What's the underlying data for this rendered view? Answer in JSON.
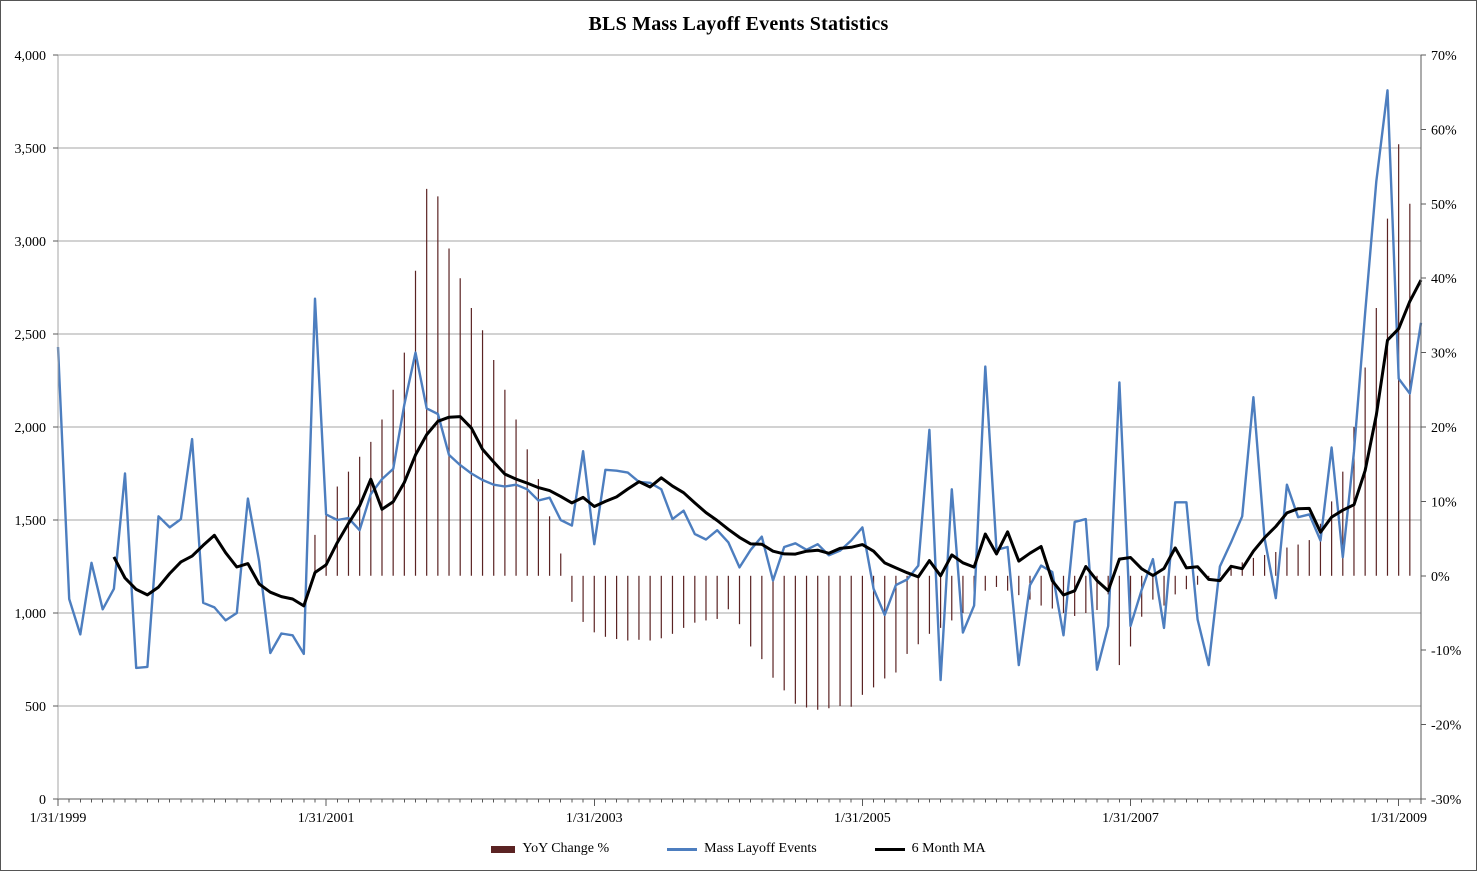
{
  "title": "BLS Mass Layoff Events Statistics",
  "chart_data": {
    "type": "combo: bar + line",
    "x_start": "1/31/1999",
    "x_freq": "monthly",
    "x_count": 123,
    "x_tick_labels": [
      "1/31/1999",
      "1/31/2001",
      "1/31/2003",
      "1/31/2005",
      "1/31/2007",
      "1/31/2009"
    ],
    "left_axis": {
      "min": 0,
      "max": 4000,
      "step": 500,
      "tick_labels": [
        "0",
        "500",
        "1,000",
        "1,500",
        "2,000",
        "2,500",
        "3,000",
        "3,500",
        "4,000"
      ]
    },
    "right_axis": {
      "min": -30,
      "max": 70,
      "step": 10,
      "tick_labels": [
        "-30%",
        "-20%",
        "-10%",
        "0%",
        "10%",
        "20%",
        "30%",
        "40%",
        "50%",
        "60%",
        "70%"
      ]
    },
    "grid": "horizontal only",
    "legend_position": "bottom center",
    "series": [
      {
        "name": "YoY Change %",
        "type": "bar",
        "axis": "right",
        "color": "#5b2323",
        "values": [
          null,
          null,
          null,
          null,
          null,
          null,
          null,
          null,
          null,
          null,
          null,
          null,
          null,
          null,
          null,
          null,
          null,
          null,
          null,
          null,
          null,
          null,
          null,
          5.5,
          9,
          12,
          14,
          16,
          18,
          21,
          25,
          30,
          41,
          52,
          51,
          44,
          40,
          36,
          33,
          29,
          25,
          21,
          17,
          13,
          8,
          3,
          -3.5,
          -6.2,
          -7.6,
          -8.2,
          -8.5,
          -8.7,
          -8.6,
          -8.7,
          -8.4,
          -7.8,
          -7,
          -6.3,
          -6,
          -5.8,
          -4.5,
          -6.5,
          -9.5,
          -11.2,
          -13.7,
          -15.4,
          -17.2,
          -17.7,
          -18,
          -17.8,
          -17.5,
          -17.6,
          -16,
          -15,
          -13.8,
          -13,
          -10.5,
          -9.2,
          -7.8,
          -7,
          -6,
          -5,
          -3.8,
          -2,
          -1.5,
          -2,
          -2.6,
          -3.2,
          -4,
          -4.4,
          -5,
          -5.4,
          -5,
          -4.6,
          -2.5,
          -12,
          -9.5,
          -5.5,
          -3.2,
          -4,
          -2.5,
          -1.8,
          -1.2,
          -0.5,
          0.6,
          1.2,
          1.8,
          2.4,
          2.8,
          3.2,
          3.8,
          4.2,
          4.8,
          7,
          10,
          14,
          20,
          28,
          36,
          48,
          58,
          50,
          null
        ]
      },
      {
        "name": "Mass Layoff Events",
        "type": "line",
        "axis": "left",
        "color": "#4d7ebf",
        "values": [
          2430,
          1075,
          885,
          1270,
          1020,
          1130,
          1750,
          705,
          710,
          1520,
          1460,
          1505,
          1935,
          1055,
          1030,
          960,
          1000,
          1615,
          1280,
          785,
          890,
          880,
          780,
          2690,
          1530,
          1500,
          1510,
          1445,
          1640,
          1720,
          1775,
          2120,
          2400,
          2100,
          2070,
          1850,
          1795,
          1750,
          1715,
          1690,
          1680,
          1690,
          1665,
          1605,
          1620,
          1500,
          1470,
          1870,
          1370,
          1770,
          1765,
          1755,
          1705,
          1700,
          1665,
          1505,
          1550,
          1425,
          1395,
          1445,
          1380,
          1245,
          1340,
          1410,
          1175,
          1355,
          1375,
          1340,
          1370,
          1310,
          1335,
          1390,
          1460,
          1130,
          990,
          1150,
          1180,
          1255,
          1985,
          640,
          1665,
          895,
          1040,
          2325,
          1340,
          1355,
          720,
          1150,
          1255,
          1220,
          880,
          1490,
          1505,
          695,
          930,
          2240,
          930,
          1125,
          1290,
          920,
          1595,
          1595,
          965,
          720,
          1250,
          1380,
          1520,
          2160,
          1400,
          1080,
          1690,
          1515,
          1530,
          1390,
          1890,
          1300,
          1870,
          2610,
          3320,
          3810,
          2260,
          2180,
          2560
        ]
      },
      {
        "name": "6 Month MA",
        "type": "line",
        "axis": "left",
        "color": "#000000",
        "derivation": "trailing 6-month average of Mass Layoff Events"
      }
    ]
  }
}
